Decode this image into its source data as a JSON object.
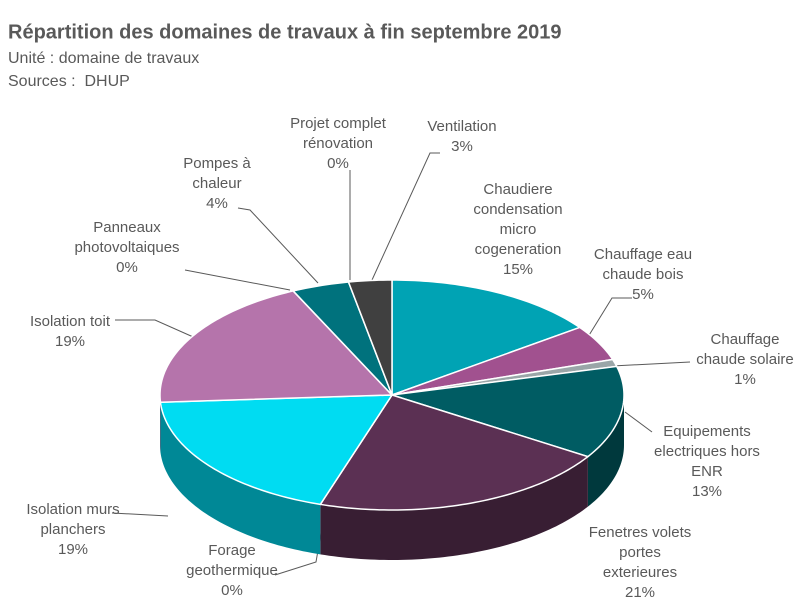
{
  "chart_data": {
    "type": "pie3d",
    "title": "Répartition des domaines de travaux à fin septembre 2019",
    "subtitle": "Unité : domaine de travaux",
    "source": "Sources :  DHUP",
    "categories": [
      "Chaudiere condensation micro cogeneration",
      "Chauffage eau chaude bois",
      "Chauffage chaude solaire",
      "Equipements electriques hors ENR",
      "Fenetres volets portes exterieures",
      "Forage geothermique",
      "Isolation murs planchers",
      "Isolation toit",
      "Panneaux photovoltaiques",
      "Pompes à chaleur",
      "Projet complet rénovation",
      "Ventilation"
    ],
    "values": [
      15,
      5,
      1,
      13,
      21,
      0,
      19,
      19,
      0,
      4,
      0,
      3
    ],
    "value_labels": [
      "15%",
      "5%",
      "1%",
      "13%",
      "21%",
      "0%",
      "19%",
      "19%",
      "0%",
      "4%",
      "0%",
      "3%"
    ],
    "colors": [
      "#00a3b4",
      "#a1518f",
      "#9aa6a8",
      "#005c63",
      "#5b3053",
      "#4aa6b3",
      "#00dcf2",
      "#b574ab",
      "#7fb7c0",
      "#00727d",
      "#6d6d6d",
      "#404040"
    ]
  }
}
